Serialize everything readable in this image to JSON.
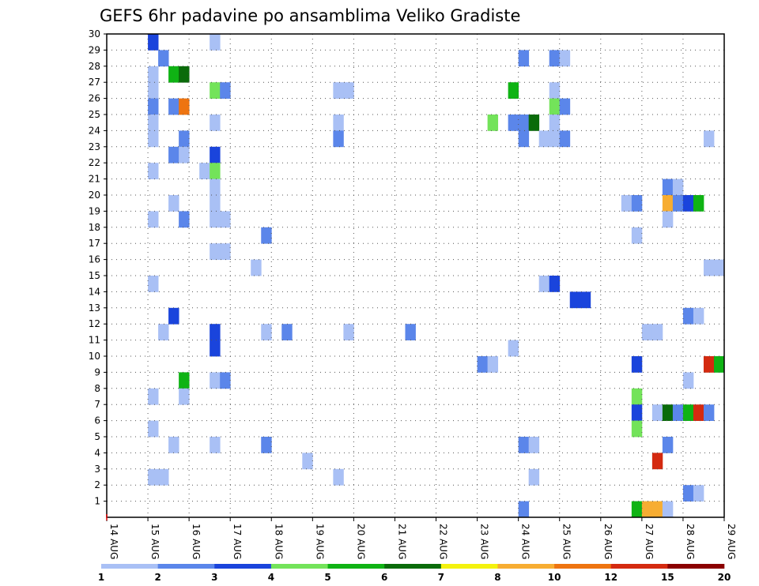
{
  "chart_data": {
    "type": "heatmap",
    "title": "GEFS 6hr padavine po ansamblima Veliko Gradiste",
    "x_tick_labels": [
      "14 AUG",
      "15 AUG",
      "16 AUG",
      "17 AUG",
      "18 AUG",
      "19 AUG",
      "20 AUG",
      "21 AUG",
      "22 AUG",
      "23 AUG",
      "24 AUG",
      "25 AUG",
      "26 AUG",
      "27 AUG",
      "28 AUG",
      "29 AUG"
    ],
    "x_unit": "6-hour step (4 per day)",
    "xlim": [
      0,
      60
    ],
    "y_tick_labels": [
      "1",
      "2",
      "3",
      "4",
      "5",
      "6",
      "7",
      "8",
      "9",
      "10",
      "11",
      "12",
      "13",
      "14",
      "15",
      "16",
      "17",
      "18",
      "19",
      "20",
      "21",
      "22",
      "23",
      "24",
      "25",
      "26",
      "27",
      "28",
      "29",
      "30"
    ],
    "ylim": [
      0,
      30
    ],
    "grid": true,
    "colorbar": {
      "labels": [
        "1",
        "2",
        "3",
        "4",
        "5",
        "6",
        "7",
        "8",
        "10",
        "12",
        "15",
        "20"
      ],
      "colors": [
        "#a9c0f5",
        "#5b86ea",
        "#1a44dc",
        "#73e35a",
        "#0fb314",
        "#0a6b0a",
        "#f4f20e",
        "#f7ad32",
        "#ee7410",
        "#d42a10",
        "#8b0000"
      ]
    },
    "cells": [
      [
        5,
        30,
        3
      ],
      [
        11,
        30,
        1
      ],
      [
        6,
        29,
        2
      ],
      [
        41,
        29,
        2
      ],
      [
        44,
        29,
        2
      ],
      [
        45,
        29,
        1
      ],
      [
        5,
        28,
        1
      ],
      [
        7,
        28,
        5
      ],
      [
        8,
        28,
        6
      ],
      [
        5,
        27,
        1
      ],
      [
        11,
        27,
        4
      ],
      [
        12,
        27,
        2
      ],
      [
        23,
        27,
        1
      ],
      [
        24,
        27,
        1
      ],
      [
        40,
        27,
        5
      ],
      [
        44,
        27,
        1
      ],
      [
        5,
        26,
        2
      ],
      [
        7,
        26,
        2
      ],
      [
        8,
        26,
        9
      ],
      [
        44,
        26,
        4
      ],
      [
        45,
        26,
        2
      ],
      [
        5,
        25,
        1
      ],
      [
        11,
        25,
        1
      ],
      [
        23,
        25,
        1
      ],
      [
        40,
        25,
        2
      ],
      [
        41,
        25,
        2
      ],
      [
        44,
        25,
        1
      ],
      [
        42,
        25,
        6
      ],
      [
        38,
        25,
        4
      ],
      [
        5,
        24,
        1
      ],
      [
        8,
        24,
        2
      ],
      [
        23,
        24,
        2
      ],
      [
        43,
        24,
        1
      ],
      [
        44,
        24,
        1
      ],
      [
        45,
        24,
        2
      ],
      [
        41,
        24,
        2
      ],
      [
        59,
        24,
        1
      ],
      [
        7,
        23,
        2
      ],
      [
        8,
        23,
        1
      ],
      [
        11,
        23,
        3
      ],
      [
        5,
        22,
        1
      ],
      [
        10,
        22,
        1
      ],
      [
        11,
        22,
        4
      ],
      [
        11,
        21,
        1
      ],
      [
        55,
        21,
        2
      ],
      [
        56,
        21,
        1
      ],
      [
        7,
        20,
        1
      ],
      [
        11,
        20,
        1
      ],
      [
        51,
        20,
        1
      ],
      [
        52,
        20,
        2
      ],
      [
        55,
        20,
        8
      ],
      [
        56,
        20,
        2
      ],
      [
        57,
        20,
        3
      ],
      [
        58,
        20,
        5
      ],
      [
        5,
        19,
        1
      ],
      [
        8,
        19,
        2
      ],
      [
        11,
        19,
        1
      ],
      [
        12,
        19,
        1
      ],
      [
        55,
        19,
        1
      ],
      [
        16,
        18,
        2
      ],
      [
        52,
        18,
        1
      ],
      [
        11,
        17,
        1
      ],
      [
        12,
        17,
        1
      ],
      [
        59,
        16,
        1
      ],
      [
        60,
        16,
        1
      ],
      [
        15,
        16,
        1
      ],
      [
        5,
        15,
        1
      ],
      [
        43,
        15,
        1
      ],
      [
        44,
        15,
        3
      ],
      [
        46,
        14,
        3
      ],
      [
        47,
        14,
        3
      ],
      [
        7,
        13,
        3
      ],
      [
        57,
        13,
        2
      ],
      [
        58,
        13,
        1
      ],
      [
        6,
        12,
        1
      ],
      [
        11,
        12,
        3
      ],
      [
        16,
        12,
        1
      ],
      [
        18,
        12,
        2
      ],
      [
        24,
        12,
        1
      ],
      [
        30,
        12,
        2
      ],
      [
        53,
        12,
        1
      ],
      [
        54,
        12,
        1
      ],
      [
        11,
        11,
        3
      ],
      [
        40,
        11,
        1
      ],
      [
        37,
        10,
        2
      ],
      [
        38,
        10,
        1
      ],
      [
        52,
        10,
        3
      ],
      [
        59,
        10,
        10
      ],
      [
        60,
        10,
        5
      ],
      [
        8,
        9,
        5
      ],
      [
        11,
        9,
        1
      ],
      [
        12,
        9,
        2
      ],
      [
        57,
        9,
        1
      ],
      [
        5,
        8,
        1
      ],
      [
        8,
        8,
        1
      ],
      [
        52,
        8,
        4
      ],
      [
        52,
        7,
        3
      ],
      [
        54,
        7,
        1
      ],
      [
        55,
        7,
        6
      ],
      [
        56,
        7,
        2
      ],
      [
        57,
        7,
        5
      ],
      [
        58,
        7,
        10
      ],
      [
        59,
        7,
        2
      ],
      [
        5,
        6,
        1
      ],
      [
        52,
        6,
        4
      ],
      [
        7,
        5,
        1
      ],
      [
        11,
        5,
        1
      ],
      [
        16,
        5,
        2
      ],
      [
        41,
        5,
        2
      ],
      [
        42,
        5,
        1
      ],
      [
        55,
        5,
        2
      ],
      [
        20,
        4,
        1
      ],
      [
        54,
        4,
        10
      ],
      [
        5,
        3,
        1
      ],
      [
        6,
        3,
        1
      ],
      [
        23,
        3,
        1
      ],
      [
        42,
        3,
        1
      ],
      [
        57,
        2,
        2
      ],
      [
        58,
        2,
        1
      ],
      [
        41,
        1,
        2
      ],
      [
        52,
        1,
        5
      ],
      [
        53,
        1,
        8
      ],
      [
        54,
        1,
        8
      ],
      [
        55,
        1,
        1
      ]
    ]
  }
}
